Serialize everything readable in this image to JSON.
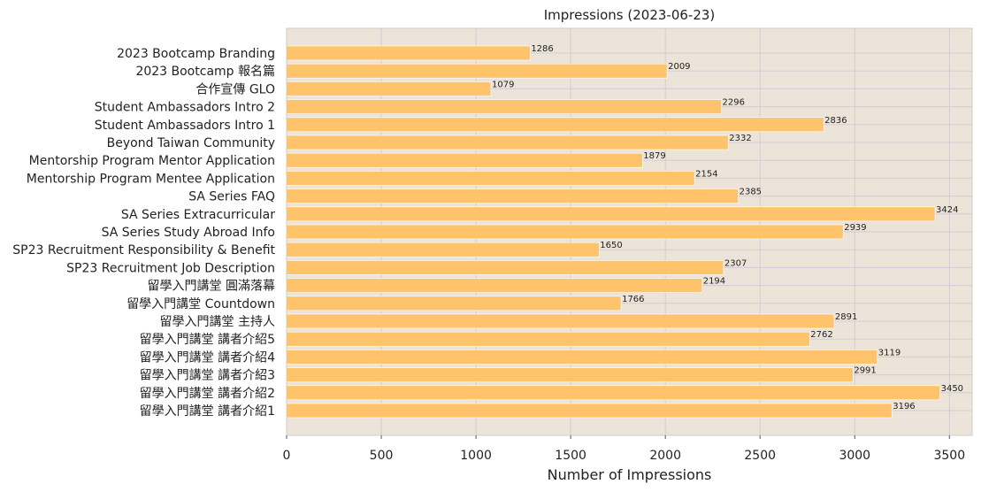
{
  "chart_data": {
    "type": "bar",
    "orientation": "horizontal",
    "title": "Impressions (2023-06-23)",
    "xlabel": "Number of Impressions",
    "ylabel": "",
    "xlim": [
      0,
      3620
    ],
    "xticks": [
      0,
      500,
      1000,
      1500,
      2000,
      2500,
      3000,
      3500
    ],
    "grid": true,
    "colors": {
      "bar": "#ffc36b",
      "plot_background": "#ece4d8",
      "grid": "#d3cbd3",
      "axis_frame": "#cccccc"
    },
    "categories": [
      "2023 Bootcamp Branding",
      "2023 Bootcamp 報名篇",
      "合作宣傳 GLO",
      "Student Ambassadors Intro 2",
      "Student Ambassadors Intro 1",
      "Beyond Taiwan Community",
      "Mentorship Program Mentor Application",
      "Mentorship Program Mentee Application",
      "SA Series FAQ",
      "SA Series Extracurricular",
      "SA Series Study Abroad Info",
      "SP23 Recruitment Responsibility & Benefit",
      "SP23 Recruitment Job Description",
      "留學入門講堂 圓滿落幕",
      "留學入門講堂 Countdown",
      "留學入門講堂 主持人",
      "留學入門講堂 講者介紹5",
      "留學入門講堂 講者介紹4",
      "留學入門講堂 講者介紹3",
      "留學入門講堂 講者介紹2",
      "留學入門講堂 講者介紹1"
    ],
    "values": [
      1286,
      2009,
      1079,
      2296,
      2836,
      2332,
      1879,
      2154,
      2385,
      3424,
      2939,
      1650,
      2307,
      2194,
      1766,
      2891,
      2762,
      3119,
      2991,
      3450,
      3196
    ]
  }
}
